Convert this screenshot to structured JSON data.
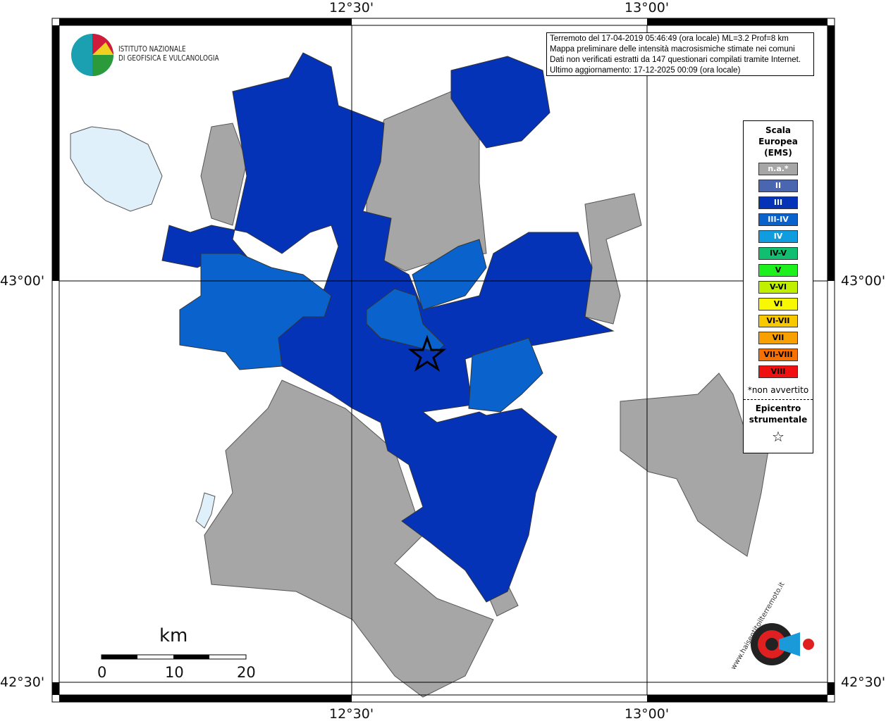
{
  "institute": {
    "line1": "ISTITUTO NAZIONALE",
    "line2": "DI GEOFISICA E VULCANOLOGIA"
  },
  "info": [
    "Terremoto del 17-04-2019 05:46:49 (ora locale) ML=3.2 Prof=8 km",
    "Mappa preliminare delle intensità macrosismiche stimate nei comuni",
    "Dati non verificati estratti da 147 questionari compilati tramite Internet.",
    "Ultimo aggiornamento: 17-12-2025 00:09 (ora locale)"
  ],
  "axes": {
    "top": [
      "12°30'",
      "13°00'"
    ],
    "bottom": [
      "12°30'",
      "13°00'"
    ],
    "left": [
      "43°00'",
      "42°30'"
    ],
    "right": [
      "43°00'",
      "42°30'"
    ]
  },
  "legend": {
    "title": [
      "Scala",
      "Europea",
      "(EMS)"
    ],
    "classes": [
      {
        "label": "n.a.*",
        "color": "#a6a6a6",
        "text": "#fff"
      },
      {
        "label": "II",
        "color": "#4a66b0",
        "text": "#fff"
      },
      {
        "label": "III",
        "color": "#0533b8",
        "text": "#fff"
      },
      {
        "label": "III-IV",
        "color": "#0a62cc",
        "text": "#fff"
      },
      {
        "label": "IV",
        "color": "#109de0",
        "text": "#fff"
      },
      {
        "label": "IV-V",
        "color": "#10c070",
        "text": "#000"
      },
      {
        "label": "V",
        "color": "#1ef01e",
        "text": "#000"
      },
      {
        "label": "V-VI",
        "color": "#c0f000",
        "text": "#000"
      },
      {
        "label": "VI",
        "color": "#f8f800",
        "text": "#000"
      },
      {
        "label": "VI-VII",
        "color": "#f8c800",
        "text": "#000"
      },
      {
        "label": "VII",
        "color": "#f8a000",
        "text": "#000"
      },
      {
        "label": "VII-VIII",
        "color": "#f87000",
        "text": "#000"
      },
      {
        "label": "VIII",
        "color": "#f01010",
        "text": "#000"
      }
    ],
    "note": "*non avvertito",
    "epi": [
      "Epicentro",
      "strumentale"
    ]
  },
  "scale": {
    "unit": "km",
    "ticks": [
      "0",
      "10",
      "20"
    ]
  },
  "logo2": {
    "text": "www.haisentitoilterremoto.it"
  }
}
